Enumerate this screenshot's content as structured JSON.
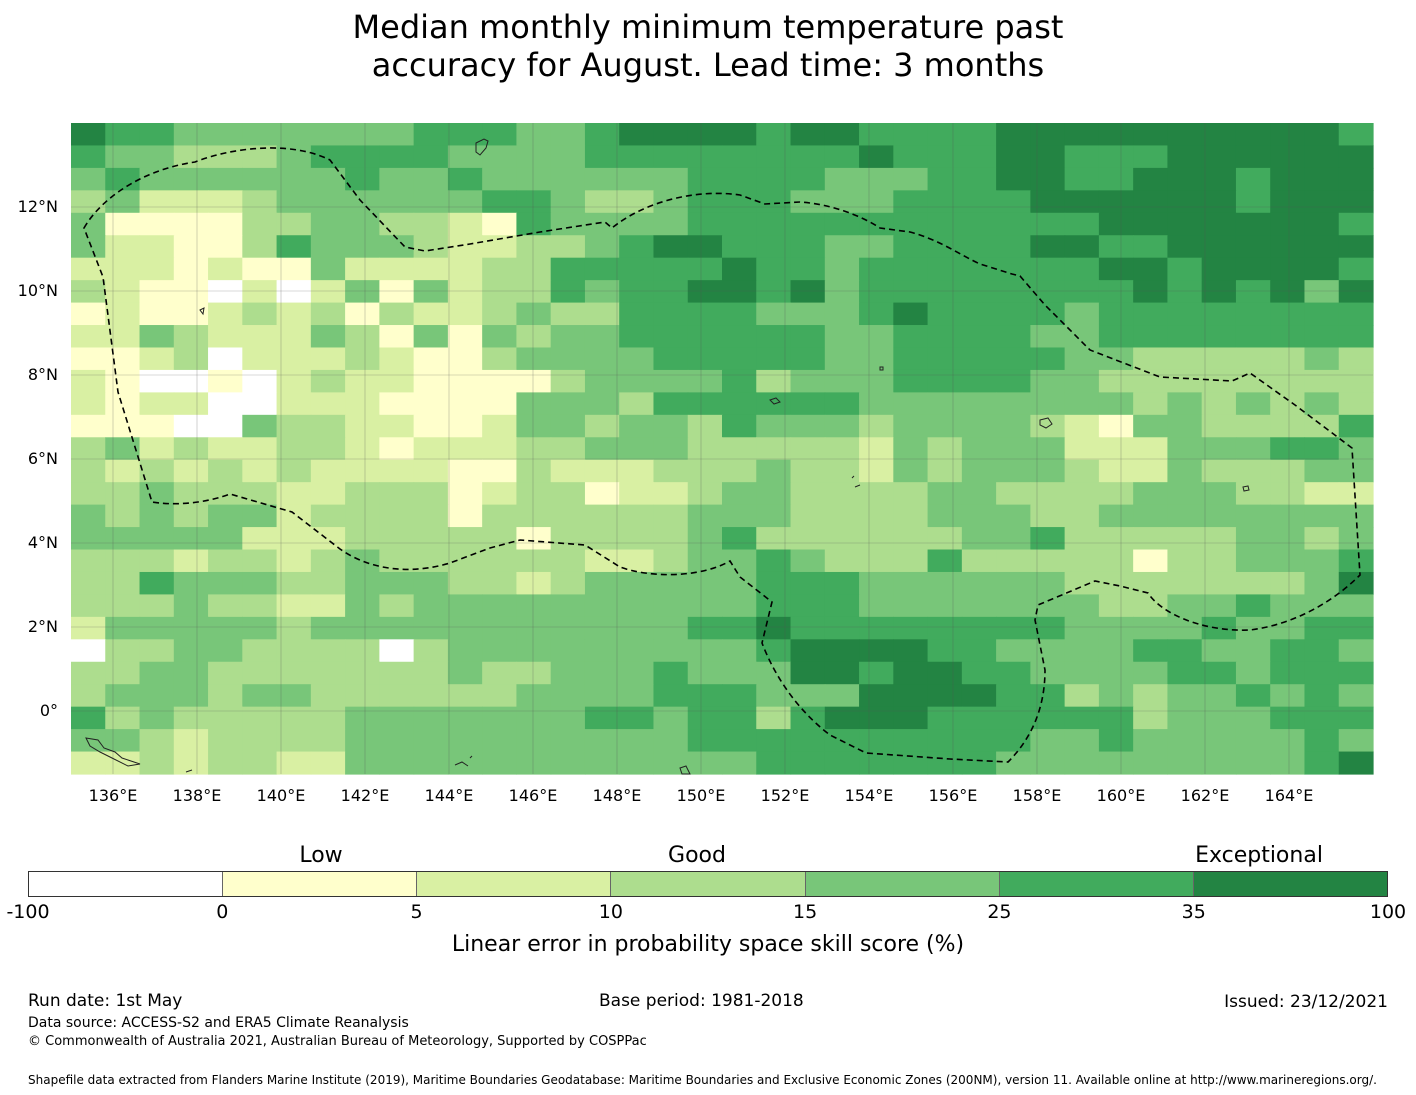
{
  "title": {
    "line1": "Median monthly minimum temperature past",
    "line2": "accuracy for August. Lead time: 3 months"
  },
  "map": {
    "lon_labels": [
      "136°E",
      "138°E",
      "140°E",
      "142°E",
      "144°E",
      "146°E",
      "148°E",
      "150°E",
      "152°E",
      "154°E",
      "156°E",
      "158°E",
      "160°E",
      "162°E",
      "164°E"
    ],
    "lat_labels": [
      "12°N",
      "10°N",
      "8°N",
      "6°N",
      "4°N",
      "2°N",
      "0°"
    ],
    "lon_range": [
      135,
      166
    ],
    "lat_range": [
      -1.5,
      14
    ],
    "grid_step_deg": 0.833,
    "gridlines": true,
    "boundary_style": "dashed"
  },
  "colorbar": {
    "ticks": [
      "-100",
      "0",
      "5",
      "10",
      "15",
      "25",
      "35",
      "100"
    ],
    "categories": [
      "Low",
      "Good",
      "Exceptional"
    ],
    "colors": [
      "#ffffff",
      "#ffffcc",
      "#d9f0a3",
      "#addd8e",
      "#78c679",
      "#41ab5d",
      "#238443"
    ],
    "label": "Linear error in probability space skill score (%)"
  },
  "footer": {
    "run_date": "Run date: 1st May",
    "base_period": "Base period: 1981-2018",
    "issued": "Issued: 23/12/2021",
    "data_source": "Data source: ACCESS-S2 and ERA5 Climate Reanalysis",
    "copyright": "© Commonwealth of Australia 2021, Australian Bureau of Meteorology, Supported by COSPPac",
    "shapefile": "Shapefile data extracted from Flanders Marine Institute (2019), Maritime Boundaries Geodatabase: Maritime Boundaries and Exclusive Economic Zones (200NM), version 11. Available online at http://www.marineregions.org/."
  }
}
